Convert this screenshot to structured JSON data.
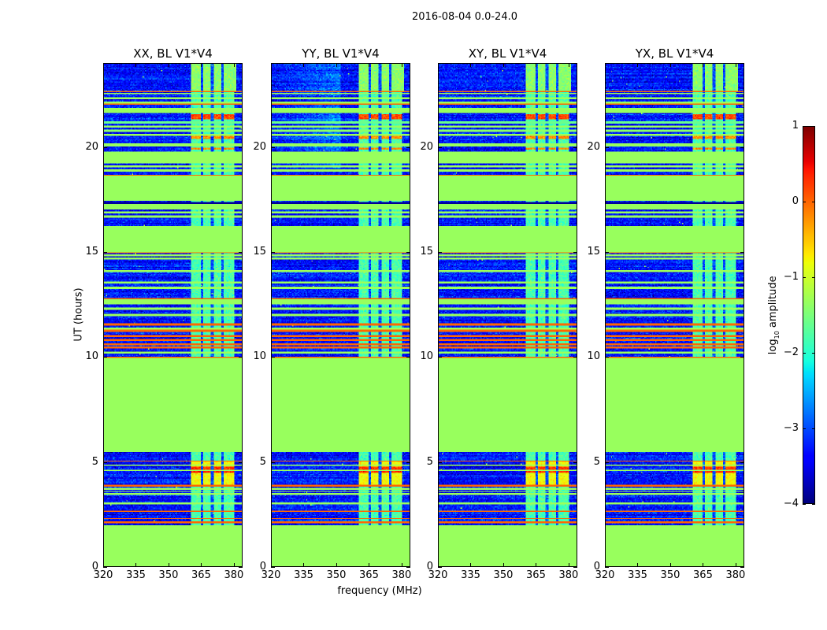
{
  "chart_data": {
    "type": "heatmap",
    "title": "2016-08-04 0.0-24.0",
    "xlabel": "frequency (MHz)",
    "ylabel": "UT (hours)",
    "xlim": [
      320,
      384
    ],
    "ylim": [
      0,
      24
    ],
    "xticks": [
      320,
      335,
      350,
      365,
      380
    ],
    "xtick_labels": [
      "320",
      "335",
      "350",
      "365",
      "380"
    ],
    "yticks": [
      0,
      5,
      10,
      15,
      20
    ],
    "ytick_labels": [
      "0",
      "5",
      "10",
      "15",
      "20"
    ],
    "panels": [
      {
        "title": "XX, BL V1*V4",
        "seed": 11
      },
      {
        "title": "YY, BL V1*V4",
        "seed": 23
      },
      {
        "title": "XY, BL V1*V4",
        "seed": 37
      },
      {
        "title": "YX, BL V1*V4",
        "seed": 41
      }
    ],
    "colorbar": {
      "colormap": "jet",
      "range": [
        -4,
        1
      ],
      "ticks": [
        1,
        0,
        -1,
        -2,
        -3,
        -4
      ],
      "tick_labels": [
        "1",
        "0",
        "−1",
        "−2",
        "−3",
        "−4"
      ],
      "label_main": "log",
      "label_sub": "10",
      "label_tail": " amplitude"
    },
    "background_level": -3.3,
    "flagged_level": -1.32,
    "flagged_intervals_hours": [
      [
        0,
        1.95
      ],
      [
        5.45,
        9.95
      ],
      [
        12.5,
        12.75
      ],
      [
        15.0,
        16.24
      ],
      [
        17.05,
        17.3
      ],
      [
        17.44,
        18.67
      ],
      [
        19.25,
        19.8
      ],
      [
        20.05,
        20.2
      ],
      [
        21.65,
        21.9
      ],
      [
        22.1,
        22.2
      ]
    ],
    "rfi_lines_hours": [
      {
        "t": 22.69,
        "level": 0.0
      },
      {
        "t": 22.56,
        "level": -1.3
      },
      {
        "t": 22.35,
        "level": -1.3
      },
      {
        "t": 22.1,
        "level": 0.0
      },
      {
        "t": 21.8,
        "level": 0.0
      },
      {
        "t": 21.2,
        "level": -1.6
      },
      {
        "t": 21.0,
        "level": -1.3
      },
      {
        "t": 20.8,
        "level": -1.4
      },
      {
        "t": 20.6,
        "level": -1.3
      },
      {
        "t": 20.1,
        "level": 0.0
      },
      {
        "t": 19.72,
        "level": 0.0
      },
      {
        "t": 19.55,
        "level": 0.0
      },
      {
        "t": 19.1,
        "level": -1.3
      },
      {
        "t": 18.9,
        "level": -1.3
      },
      {
        "t": 18.67,
        "level": 0.0
      },
      {
        "t": 17.35,
        "level": -3.9
      },
      {
        "t": 16.9,
        "level": -1.3
      },
      {
        "t": 16.7,
        "level": -1.3
      },
      {
        "t": 16.24,
        "level": 0.0
      },
      {
        "t": 15.0,
        "level": 0.0
      },
      {
        "t": 14.85,
        "level": -1.3
      },
      {
        "t": 14.7,
        "level": -1.3
      },
      {
        "t": 14.1,
        "level": -1.3
      },
      {
        "t": 13.55,
        "level": -1.3
      },
      {
        "t": 13.3,
        "level": -1.3
      },
      {
        "t": 12.75,
        "level": 0.0
      },
      {
        "t": 12.3,
        "level": -1.3
      },
      {
        "t": 12.0,
        "level": -1.3
      },
      {
        "t": 11.55,
        "level": 0.0
      },
      {
        "t": 11.35,
        "level": -1.3
      },
      {
        "t": 11.25,
        "level": 0.0
      },
      {
        "t": 11.0,
        "level": 0.0
      },
      {
        "t": 10.8,
        "level": 0.0
      },
      {
        "t": 10.6,
        "level": 0.0
      },
      {
        "t": 10.45,
        "level": 0.0
      },
      {
        "t": 10.2,
        "level": -1.3
      },
      {
        "t": 9.97,
        "level": 0.0
      },
      {
        "t": 5.02,
        "level": 0.0
      },
      {
        "t": 4.84,
        "level": -1.3
      },
      {
        "t": 4.57,
        "level": -1.3
      },
      {
        "t": 3.86,
        "level": 0.0
      },
      {
        "t": 3.7,
        "level": -1.3
      },
      {
        "t": 3.58,
        "level": -1.3
      },
      {
        "t": 3.45,
        "level": -1.3
      },
      {
        "t": 3.0,
        "level": -1.3
      },
      {
        "t": 2.62,
        "level": 0.0
      },
      {
        "t": 2.29,
        "level": 0.0
      },
      {
        "t": 2.1,
        "level": 0.0
      }
    ],
    "bright_band_mhz": [
      360.5,
      380.5
    ],
    "bright_band_top_extent_mhz": [
      360.5,
      381.5
    ],
    "bright_band_level": -1.8,
    "band_gaps_mhz": [
      365.5,
      370.2,
      374.9
    ],
    "band_gap_level": -3.0,
    "hot_spots": [
      {
        "t0": 21.35,
        "t1": 21.6,
        "level": 0.15
      },
      {
        "t0": 20.4,
        "t1": 20.55,
        "level": -0.2
      },
      {
        "t0": 19.9,
        "t1": 20.0,
        "level": -0.2
      },
      {
        "t0": 22.7,
        "t1": 24.0,
        "level": -1.4
      },
      {
        "t0": 3.9,
        "t1": 5.0,
        "level": -0.8
      },
      {
        "t0": 4.45,
        "t1": 4.75,
        "level": 0.25
      }
    ]
  }
}
